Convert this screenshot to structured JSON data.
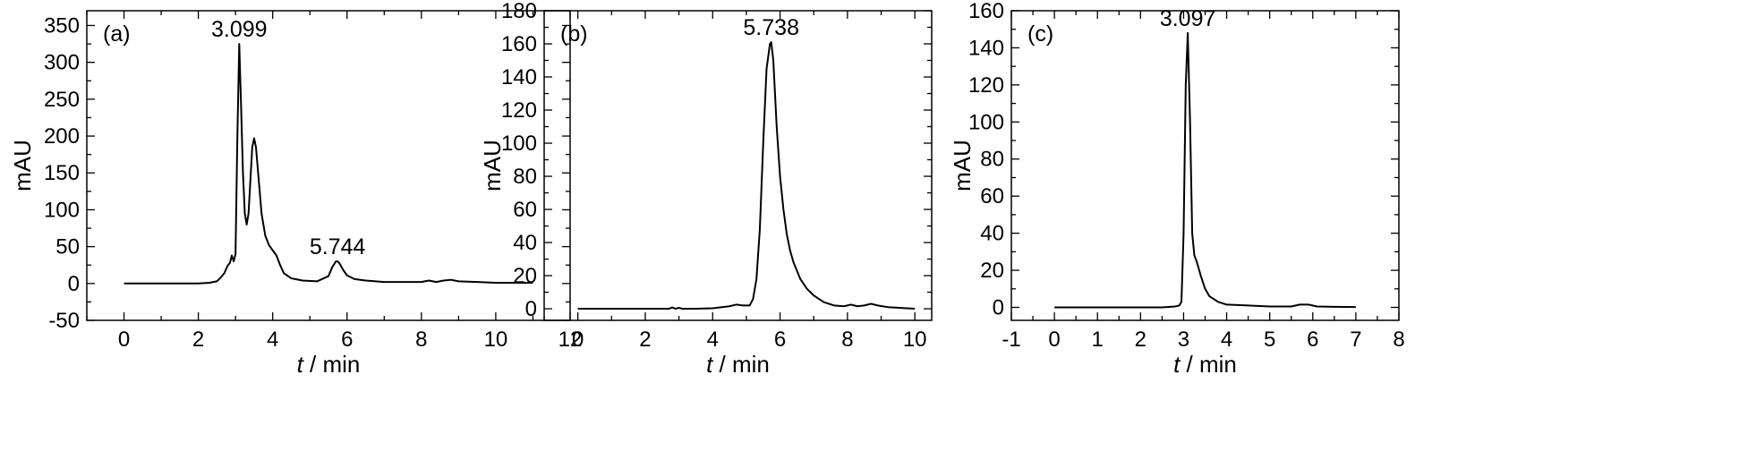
{
  "chart_data": [
    {
      "type": "line",
      "panel_label": "(a)",
      "xlabel": {
        "var": "t",
        "unit": " / min"
      },
      "ylabel": "mAU",
      "xlim": [
        -1,
        12
      ],
      "ylim": [
        -50,
        370
      ],
      "xticks": [
        0,
        2,
        4,
        6,
        8,
        10,
        12
      ],
      "yticks": [
        -50,
        0,
        50,
        100,
        150,
        200,
        250,
        300,
        350
      ],
      "grid": false,
      "annotations": [
        {
          "text": "3.099",
          "x": 3.099,
          "y": 325
        },
        {
          "text": "5.744",
          "x": 5.744,
          "y": 30
        }
      ],
      "series": [
        {
          "x": [
            0,
            1,
            2,
            2.3,
            2.5,
            2.6,
            2.7,
            2.75,
            2.8,
            2.85,
            2.9,
            2.95,
            3.0,
            3.05,
            3.1,
            3.15,
            3.2,
            3.25,
            3.3,
            3.35,
            3.4,
            3.45,
            3.5,
            3.55,
            3.6,
            3.7,
            3.8,
            3.9,
            4.0,
            4.1,
            4.2,
            4.3,
            4.5,
            4.8,
            5.2,
            5.5,
            5.6,
            5.7,
            5.75,
            5.8,
            5.9,
            6.0,
            6.2,
            6.5,
            7.0,
            7.5,
            8.0,
            8.2,
            8.4,
            8.6,
            8.8,
            9.0,
            9.5,
            10.0,
            11.0
          ],
          "y": [
            0,
            0,
            0,
            1,
            3,
            8,
            14,
            20,
            25,
            28,
            38,
            30,
            40,
            200,
            325,
            240,
            150,
            95,
            80,
            95,
            140,
            185,
            197,
            185,
            155,
            95,
            65,
            52,
            45,
            38,
            25,
            14,
            7,
            4,
            3,
            10,
            22,
            30,
            30,
            27,
            18,
            11,
            6,
            4,
            2,
            2,
            2,
            4,
            2,
            4,
            5,
            3,
            2,
            1,
            1
          ]
        }
      ]
    },
    {
      "type": "line",
      "panel_label": "(b)",
      "xlabel": {
        "var": "t",
        "unit": " / min"
      },
      "ylabel": "mAU",
      "xlim": [
        -1,
        10.5
      ],
      "ylim": [
        -7,
        180
      ],
      "xticks": [
        0,
        2,
        4,
        6,
        8,
        10
      ],
      "yticks": [
        0,
        20,
        40,
        60,
        80,
        100,
        120,
        140,
        160,
        180
      ],
      "grid": false,
      "annotations": [
        {
          "text": "5.738",
          "x": 5.738,
          "y": 161
        }
      ],
      "series": [
        {
          "x": [
            0,
            1,
            2,
            2.7,
            2.8,
            2.9,
            3.0,
            3.1,
            3.5,
            4.0,
            4.5,
            4.7,
            4.9,
            5.1,
            5.2,
            5.3,
            5.4,
            5.5,
            5.6,
            5.7,
            5.738,
            5.8,
            5.9,
            6.0,
            6.1,
            6.2,
            6.3,
            6.4,
            6.6,
            6.8,
            7.0,
            7.3,
            7.6,
            7.9,
            8.1,
            8.3,
            8.5,
            8.7,
            8.9,
            9.2,
            9.6,
            10.0
          ],
          "y": [
            0,
            0,
            0,
            0,
            0.8,
            0,
            0.6,
            0,
            0,
            0.3,
            1.5,
            2.5,
            2,
            2,
            6,
            18,
            48,
            100,
            145,
            160,
            161,
            150,
            110,
            80,
            60,
            45,
            35,
            28,
            18,
            12,
            8,
            4,
            2,
            1.5,
            2.5,
            1.5,
            2,
            3,
            2,
            1,
            0.5,
            0
          ]
        }
      ]
    },
    {
      "type": "line",
      "panel_label": "(c)",
      "xlabel": {
        "var": "t",
        "unit": " / min"
      },
      "ylabel": "mAU",
      "xlim": [
        -1,
        8
      ],
      "ylim": [
        -7,
        160
      ],
      "xticks": [
        -1,
        0,
        1,
        2,
        3,
        4,
        5,
        6,
        7,
        8
      ],
      "yticks": [
        0,
        20,
        40,
        60,
        80,
        100,
        120,
        140,
        160
      ],
      "grid": false,
      "annotations": [
        {
          "text": "3.097",
          "x": 3.097,
          "y": 148
        }
      ],
      "series": [
        {
          "x": [
            0,
            0.5,
            1,
            1.5,
            2,
            2.5,
            2.8,
            2.9,
            2.95,
            3.0,
            3.05,
            3.097,
            3.15,
            3.2,
            3.25,
            3.3,
            3.4,
            3.5,
            3.6,
            3.8,
            4.0,
            4.5,
            5.0,
            5.5,
            5.7,
            5.9,
            6.1,
            6.5,
            7.0
          ],
          "y": [
            0,
            0,
            0,
            0,
            0,
            0,
            0.5,
            1,
            3,
            40,
            120,
            148,
            100,
            40,
            28,
            25,
            17,
            10,
            6,
            3,
            1.5,
            1,
            0.5,
            0.5,
            1.5,
            1.5,
            0.5,
            0.3,
            0.2
          ]
        }
      ]
    }
  ]
}
